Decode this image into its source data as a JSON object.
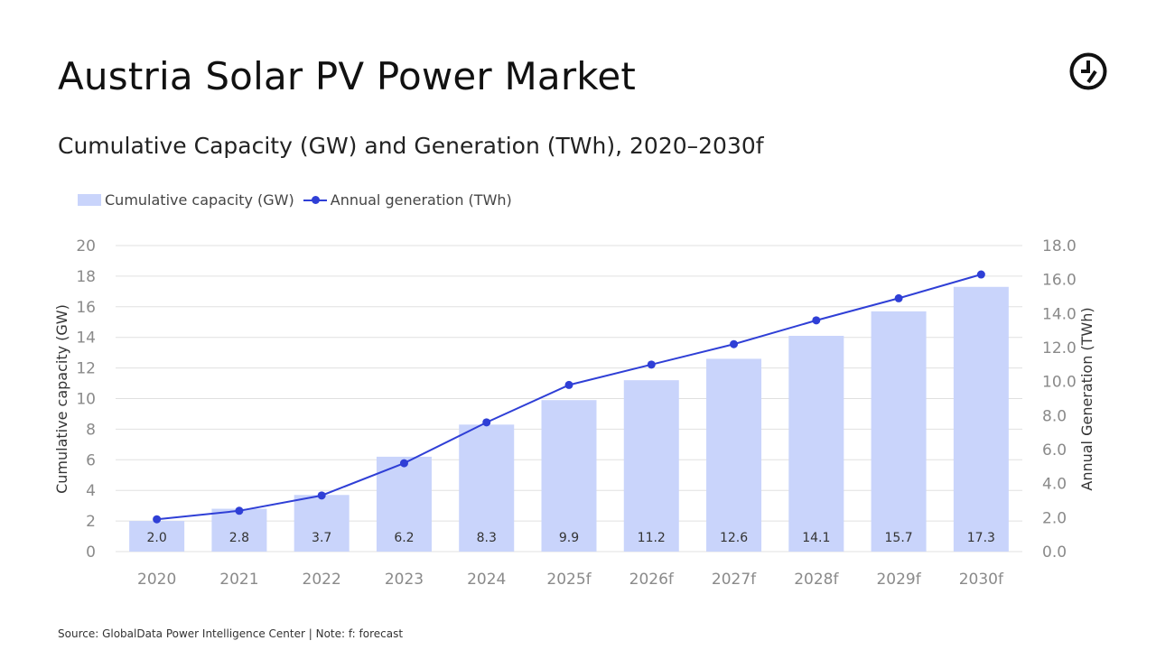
{
  "title": "Austria Solar PV Power Market",
  "subtitle": "Cumulative Capacity (GW) and Generation (TWh), 2020–2030f",
  "logo_icon": "globaldata-logo-icon",
  "source": "Source: GlobalData Power Intelligence Center | Note: f: forecast",
  "colors": {
    "bar": "#c9d4fb",
    "line": "#2f3fd6",
    "grid": "#e0e0e0"
  },
  "chart_data": {
    "type": "bar",
    "categories": [
      "2020",
      "2021",
      "2022",
      "2023",
      "2024",
      "2025f",
      "2026f",
      "2027f",
      "2028f",
      "2029f",
      "2030f"
    ],
    "series": [
      {
        "name": "Cumulative capacity (GW)",
        "type": "bar",
        "axis": "left",
        "values": [
          2.0,
          2.8,
          3.7,
          6.2,
          8.3,
          9.9,
          11.2,
          12.6,
          14.1,
          15.7,
          17.3
        ],
        "labels": [
          "2.0",
          "2.8",
          "3.7",
          "6.2",
          "8.3",
          "9.9",
          "11.2",
          "12.6",
          "14.1",
          "15.7",
          "17.3"
        ]
      },
      {
        "name": "Annual generation (TWh)",
        "type": "line",
        "axis": "right",
        "values": [
          1.9,
          2.4,
          3.3,
          5.2,
          7.6,
          9.8,
          11.0,
          12.2,
          13.6,
          14.9,
          16.3
        ]
      }
    ],
    "ylabel": "Cumulative capacity (GW)",
    "ylabel_right": "Annual Generation (TWh)",
    "ylim": [
      0,
      20
    ],
    "ylim_right": [
      0,
      18
    ],
    "yticks": [
      "0",
      "2",
      "4",
      "6",
      "8",
      "10",
      "12",
      "14",
      "16",
      "18",
      "20"
    ],
    "yticks_right": [
      "0.0",
      "2.0",
      "4.0",
      "6.0",
      "8.0",
      "10.0",
      "12.0",
      "14.0",
      "16.0",
      "18.0"
    ],
    "grid": true,
    "legend": "top-left"
  }
}
